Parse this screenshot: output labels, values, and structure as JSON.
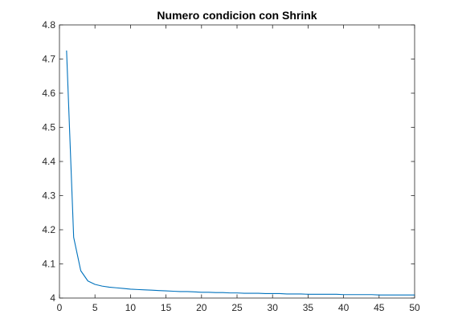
{
  "chart_data": {
    "type": "line",
    "title": "Numero condicion con Shrink",
    "xlabel": "",
    "ylabel": "",
    "xlim": [
      0,
      50
    ],
    "ylim": [
      4,
      4.8
    ],
    "xticks": [
      0,
      5,
      10,
      15,
      20,
      25,
      30,
      35,
      40,
      45,
      50
    ],
    "yticks": [
      4,
      4.1,
      4.2,
      4.3,
      4.4,
      4.5,
      4.6,
      4.7,
      4.8
    ],
    "xtick_labels": [
      "0",
      "5",
      "10",
      "15",
      "20",
      "25",
      "30",
      "35",
      "40",
      "45",
      "50"
    ],
    "ytick_labels": [
      "4",
      "4.1",
      "4.2",
      "4.3",
      "4.4",
      "4.5",
      "4.6",
      "4.7",
      "4.8"
    ],
    "grid": false,
    "line_color": "#0072BD",
    "series": [
      {
        "x": [
          1,
          2,
          3,
          4,
          5,
          6,
          7,
          8,
          9,
          10,
          11,
          12,
          13,
          14,
          15,
          16,
          17,
          18,
          19,
          20,
          21,
          22,
          23,
          24,
          25,
          26,
          27,
          28,
          29,
          30,
          31,
          32,
          33,
          34,
          35,
          36,
          37,
          38,
          39,
          40,
          41,
          42,
          43,
          44,
          45,
          46,
          47,
          48,
          49,
          50
        ],
        "values": [
          4.725,
          4.178,
          4.08,
          4.05,
          4.04,
          4.035,
          4.032,
          4.03,
          4.028,
          4.026,
          4.025,
          4.024,
          4.023,
          4.022,
          4.021,
          4.02,
          4.019,
          4.019,
          4.018,
          4.017,
          4.017,
          4.016,
          4.016,
          4.015,
          4.015,
          4.014,
          4.014,
          4.014,
          4.013,
          4.013,
          4.013,
          4.012,
          4.012,
          4.012,
          4.011,
          4.011,
          4.011,
          4.011,
          4.011,
          4.01,
          4.01,
          4.01,
          4.01,
          4.01,
          4.009,
          4.009,
          4.009,
          4.009,
          4.009,
          4.009
        ]
      }
    ]
  }
}
